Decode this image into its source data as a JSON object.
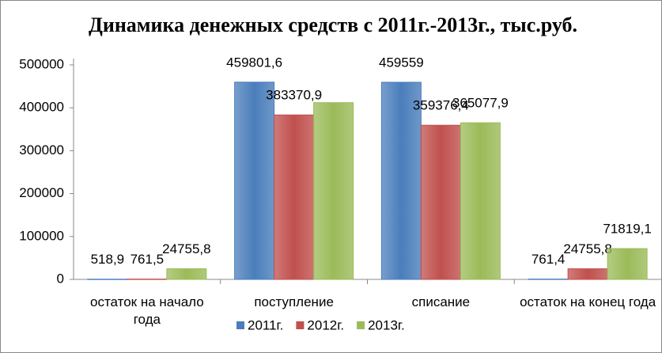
{
  "chart_data": {
    "type": "bar",
    "title": "Динамика денежных средств с 2011г.-2013г., тыс.руб.",
    "categories": [
      "остаток на начало года",
      "поступление",
      "списание",
      "остаток на конец года"
    ],
    "series": [
      {
        "name": "2011г.",
        "color": "#4a7ebb",
        "values": [
          518.9,
          459801.6,
          459559,
          761.4
        ],
        "value_labels": [
          "518,9",
          "459801,6",
          "459559",
          "761,4"
        ]
      },
      {
        "name": "2012г.",
        "color": "#c0504d",
        "values": [
          761.5,
          383370.9,
          359376.4,
          24755.8
        ],
        "value_labels": [
          "761,5",
          "383370,9",
          "359376,4",
          "24755,8"
        ]
      },
      {
        "name": "2013г.",
        "color": "#9bbb59",
        "values": [
          24755.8,
          412000,
          365077.9,
          71819.1
        ],
        "value_labels": [
          "24755,8",
          null,
          "365077,9",
          "71819,1"
        ]
      }
    ],
    "ylim": [
      0,
      500000
    ],
    "yticks": [
      0,
      100000,
      200000,
      300000,
      400000,
      500000
    ],
    "grid": false,
    "legend": "bottom"
  }
}
